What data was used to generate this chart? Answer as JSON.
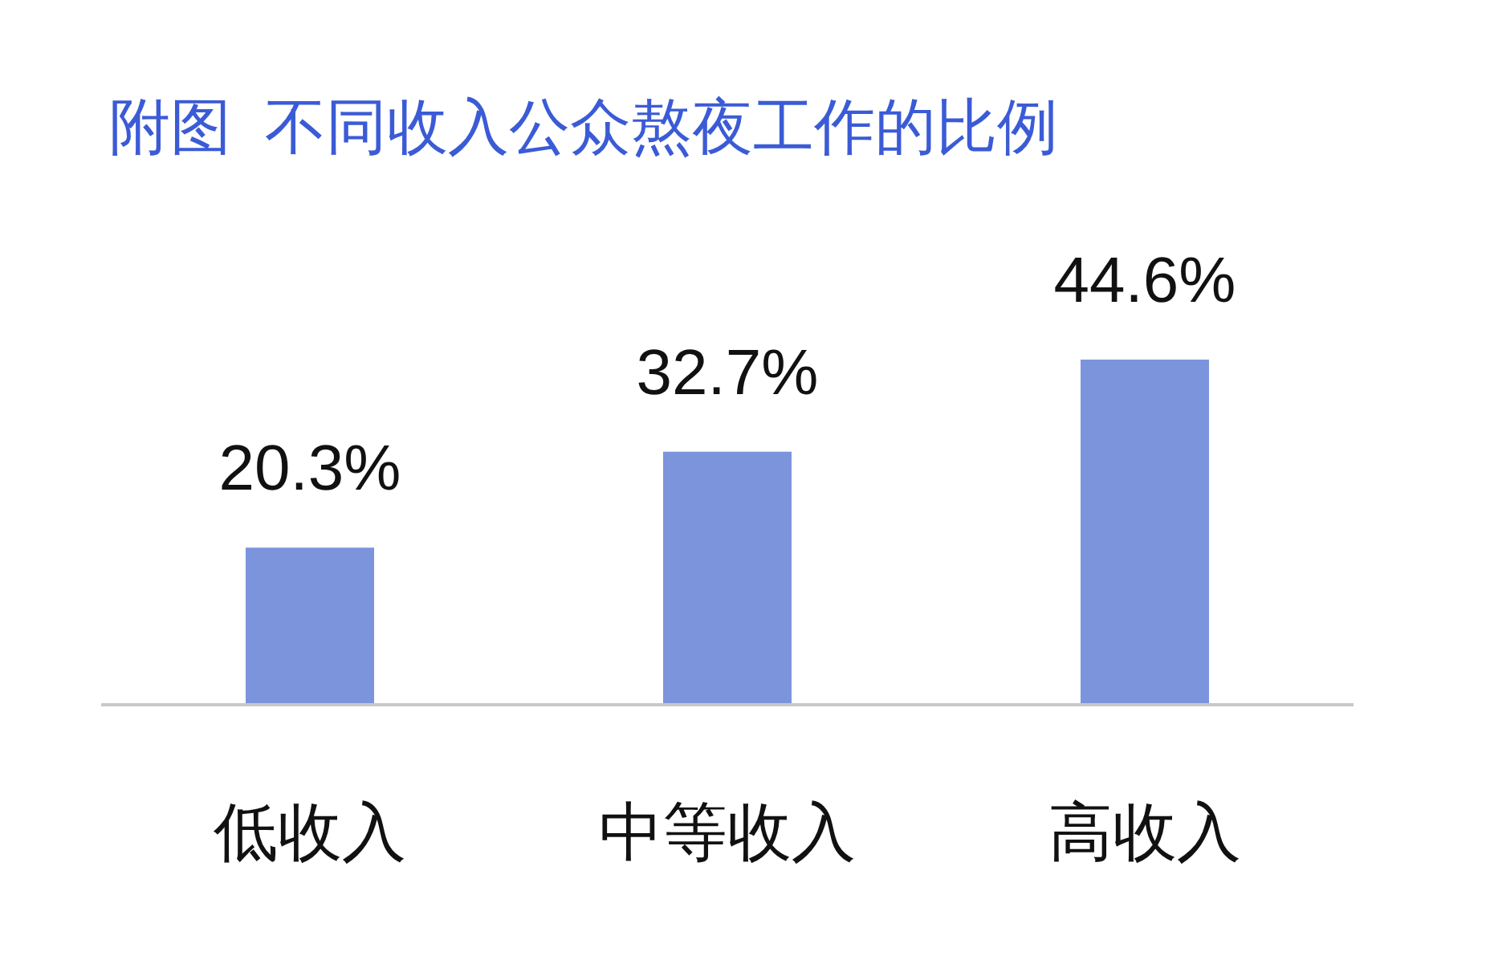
{
  "chart_data": {
    "type": "bar",
    "title": "附图  不同收入公众熬夜工作的比例",
    "categories": [
      "低收入",
      "中等收入",
      "高收入"
    ],
    "values": [
      20.3,
      32.7,
      44.6
    ],
    "value_labels": [
      "20.3%",
      "32.7%",
      "44.6%"
    ],
    "color": "#7b94dc"
  }
}
